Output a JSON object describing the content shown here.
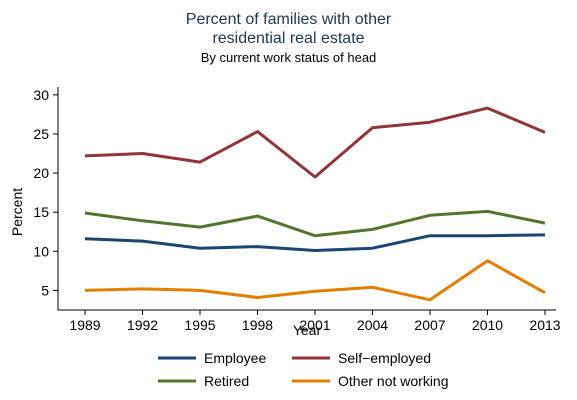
{
  "chart_data": {
    "type": "line",
    "title_lines": [
      "Percent of families with other",
      "residential real estate"
    ],
    "subtitle": "By current work status of head",
    "xlabel": "Year",
    "ylabel": "Percent",
    "categories": [
      "1989",
      "1992",
      "1995",
      "1998",
      "2001",
      "2004",
      "2007",
      "2010",
      "2013"
    ],
    "ylim": [
      2.5,
      31
    ],
    "yticks": [
      5,
      10,
      15,
      20,
      25,
      30
    ],
    "grid": false,
    "legend_position": "bottom",
    "series": [
      {
        "name": "Employee",
        "color": "#1a476f",
        "values": [
          11.6,
          11.3,
          10.4,
          10.6,
          10.1,
          10.4,
          12.0,
          12.0,
          12.1
        ]
      },
      {
        "name": "Self−employed",
        "color": "#90353b",
        "values": [
          22.2,
          22.5,
          21.4,
          25.3,
          19.5,
          25.8,
          26.5,
          28.3,
          25.2
        ]
      },
      {
        "name": "Retired",
        "color": "#55752f",
        "values": [
          14.9,
          13.9,
          13.1,
          14.5,
          12.0,
          12.8,
          14.6,
          15.1,
          13.6
        ]
      },
      {
        "name": "Other not working",
        "color": "#e37e00",
        "values": [
          5.0,
          5.2,
          5.0,
          4.1,
          4.9,
          5.4,
          3.8,
          8.8,
          4.7
        ]
      }
    ]
  }
}
